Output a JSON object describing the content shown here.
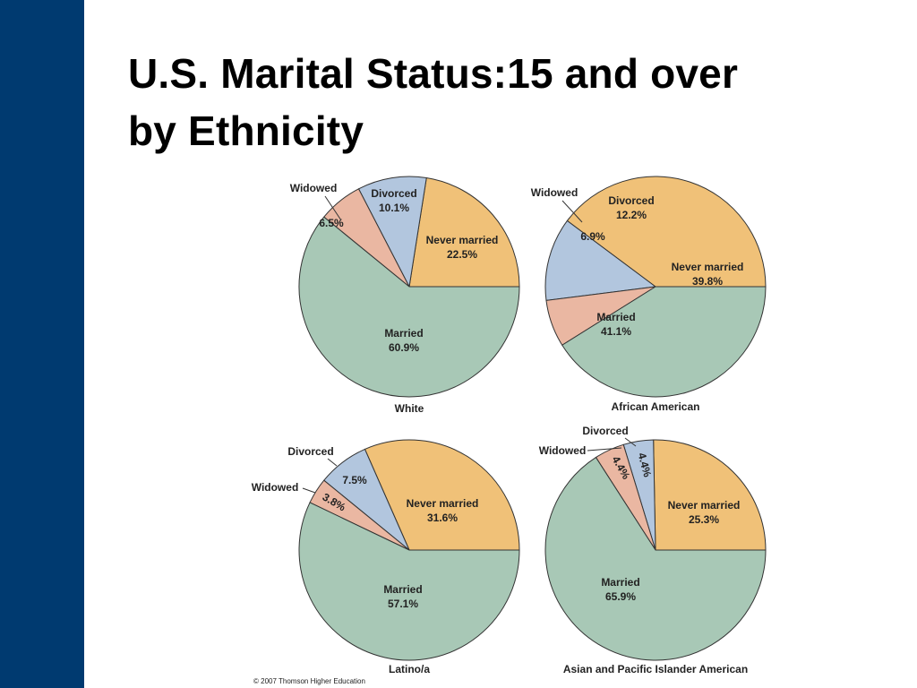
{
  "slide": {
    "title_line1": "U.S. Marital Status:15 and over",
    "title_line2": "by Ethnicity",
    "copyright": "© 2007 Thomson Higher Education"
  },
  "colors": {
    "sidebar": "#003a70",
    "never_married": "#f0c178",
    "divorced": "#b2c6de",
    "widowed": "#eab7a2",
    "married": "#a8c8b6",
    "outline": "#333333"
  },
  "chart_data": [
    {
      "type": "pie",
      "title": "White",
      "slices": [
        {
          "name": "Never married",
          "value": 22.5,
          "label": "22.5%"
        },
        {
          "name": "Divorced",
          "value": 10.1,
          "label": "10.1%"
        },
        {
          "name": "Widowed",
          "value": 6.5,
          "label": "6.5%"
        },
        {
          "name": "Married",
          "value": 60.9,
          "label": "60.9%"
        }
      ]
    },
    {
      "type": "pie",
      "title": "African American",
      "slices": [
        {
          "name": "Never married",
          "value": 39.8,
          "label": "39.8%"
        },
        {
          "name": "Divorced",
          "value": 12.2,
          "label": "12.2%"
        },
        {
          "name": "Widowed",
          "value": 6.9,
          "label": "6.9%"
        },
        {
          "name": "Married",
          "value": 41.1,
          "label": "41.1%"
        }
      ]
    },
    {
      "type": "pie",
      "title": "Latino/a",
      "slices": [
        {
          "name": "Never married",
          "value": 31.6,
          "label": "31.6%"
        },
        {
          "name": "Divorced",
          "value": 7.5,
          "label": "7.5%"
        },
        {
          "name": "Widowed",
          "value": 3.8,
          "label": "3.8%"
        },
        {
          "name": "Married",
          "value": 57.1,
          "label": "57.1%"
        }
      ]
    },
    {
      "type": "pie",
      "title": "Asian and Pacific Islander American",
      "slices": [
        {
          "name": "Never married",
          "value": 25.3,
          "label": "25.3%"
        },
        {
          "name": "Divorced",
          "value": 4.4,
          "label": "4.4%"
        },
        {
          "name": "Widowed",
          "value": 4.4,
          "label": "4.4%"
        },
        {
          "name": "Married",
          "value": 65.9,
          "label": "65.9%"
        }
      ]
    }
  ]
}
